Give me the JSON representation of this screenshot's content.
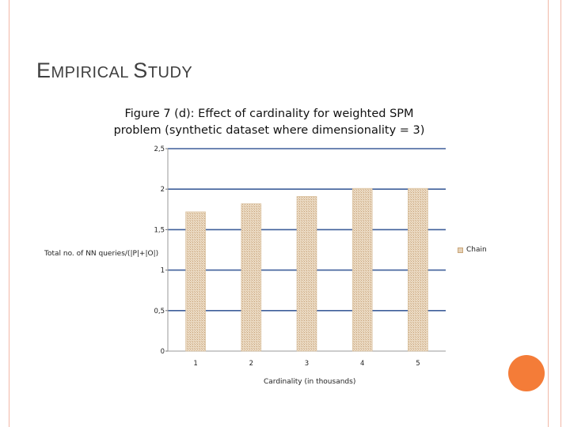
{
  "slide": {
    "title_first_letter": "E",
    "title_rest_1": "MPIRICAL ",
    "title_second_letter": "S",
    "title_rest_2": "TUDY",
    "accent_color": "#f47c38",
    "border_color": "#f2b8a8"
  },
  "chart_data": {
    "type": "bar",
    "title_line1": "Figure 7 (d): Effect of cardinality for weighted SPM",
    "title_line2": "problem (synthetic dataset where dimensionality = 3)",
    "xlabel": "Cardinality (in thousands)",
    "ylabel": "Total no. of NN queries/(|P|+|O|)",
    "categories": [
      "1",
      "2",
      "3",
      "4",
      "5"
    ],
    "series": [
      {
        "name": "Chain",
        "values": [
          1.72,
          1.82,
          1.91,
          2.01,
          2.01
        ]
      }
    ],
    "yticks": [
      "0",
      "0,5",
      "1",
      "1,5",
      "2",
      "2,5"
    ],
    "ylim": [
      0,
      2.5
    ],
    "grid": true,
    "legend_position": "right",
    "bar_color": "#e6d1b6",
    "gridline_color": "#3f5f9a"
  }
}
